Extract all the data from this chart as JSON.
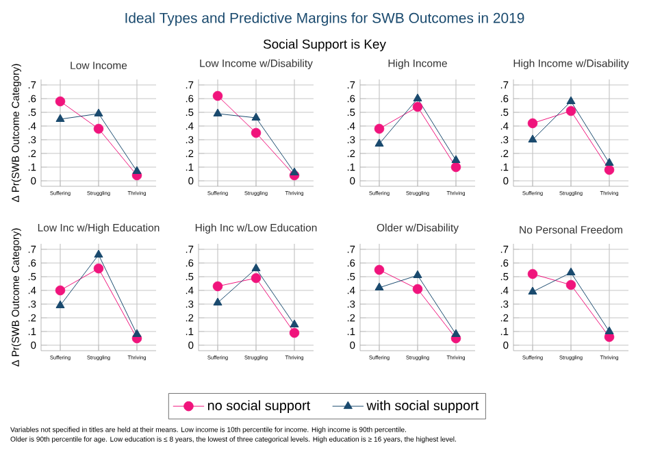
{
  "chart_data": [
    {
      "type": "line",
      "title": "Low Income",
      "ylabel": "Δ Pr(SWB Outcome Category)",
      "categories": [
        "Suffering",
        "Struggling",
        "Thriving"
      ],
      "ylim": [
        -0.04,
        0.74
      ],
      "yticks": [
        {
          "value": 0,
          "label": "0"
        },
        {
          "value": 0.1,
          "label": ".1"
        },
        {
          "value": 0.2,
          "label": ".2"
        },
        {
          "value": 0.3,
          "label": ".3"
        },
        {
          "value": 0.4,
          "label": ".4"
        },
        {
          "value": 0.5,
          "label": ".5"
        },
        {
          "value": 0.6,
          "label": ".6"
        },
        {
          "value": 0.7,
          "label": ".7"
        }
      ],
      "grid": true,
      "series": [
        {
          "color": "#f0147c",
          "marker": "circle",
          "values": [
            0.58,
            0.38,
            0.04
          ]
        },
        {
          "color": "#1a4a6e",
          "marker": "triangle",
          "values": [
            0.45,
            0.49,
            0.07
          ]
        }
      ]
    },
    {
      "type": "line",
      "title": "Low Income w/Disability",
      "categories": [
        "Suffering",
        "Struggling",
        "Thriving"
      ],
      "ylim": [
        -0.04,
        0.74
      ],
      "yticks": [
        {
          "value": 0,
          "label": "0"
        },
        {
          "value": 0.1,
          "label": ".1"
        },
        {
          "value": 0.2,
          "label": ".2"
        },
        {
          "value": 0.3,
          "label": ".3"
        },
        {
          "value": 0.4,
          "label": ".4"
        },
        {
          "value": 0.5,
          "label": ".5"
        },
        {
          "value": 0.6,
          "label": ".6"
        },
        {
          "value": 0.7,
          "label": ".7"
        }
      ],
      "grid": true,
      "series": [
        {
          "color": "#f0147c",
          "marker": "circle",
          "values": [
            0.62,
            0.35,
            0.04
          ]
        },
        {
          "color": "#1a4a6e",
          "marker": "triangle",
          "values": [
            0.49,
            0.46,
            0.06
          ]
        }
      ]
    },
    {
      "type": "line",
      "title": "High Income",
      "categories": [
        "Suffering",
        "Struggling",
        "Thriving"
      ],
      "ylim": [
        -0.04,
        0.74
      ],
      "yticks": [
        {
          "value": 0,
          "label": "0"
        },
        {
          "value": 0.1,
          "label": ".1"
        },
        {
          "value": 0.2,
          "label": ".2"
        },
        {
          "value": 0.3,
          "label": ".3"
        },
        {
          "value": 0.4,
          "label": ".4"
        },
        {
          "value": 0.5,
          "label": ".5"
        },
        {
          "value": 0.6,
          "label": ".6"
        },
        {
          "value": 0.7,
          "label": ".7"
        }
      ],
      "grid": true,
      "series": [
        {
          "color": "#f0147c",
          "marker": "circle",
          "values": [
            0.38,
            0.54,
            0.1
          ]
        },
        {
          "color": "#1a4a6e",
          "marker": "triangle",
          "values": [
            0.27,
            0.6,
            0.15
          ]
        }
      ]
    },
    {
      "type": "line",
      "title": "High Income w/Disability",
      "categories": [
        "Suffering",
        "Struggling",
        "Thriving"
      ],
      "ylim": [
        -0.04,
        0.74
      ],
      "yticks": [
        {
          "value": 0,
          "label": "0"
        },
        {
          "value": 0.1,
          "label": ".1"
        },
        {
          "value": 0.2,
          "label": ".2"
        },
        {
          "value": 0.3,
          "label": ".3"
        },
        {
          "value": 0.4,
          "label": ".4"
        },
        {
          "value": 0.5,
          "label": ".5"
        },
        {
          "value": 0.6,
          "label": ".6"
        },
        {
          "value": 0.7,
          "label": ".7"
        }
      ],
      "grid": true,
      "series": [
        {
          "color": "#f0147c",
          "marker": "circle",
          "values": [
            0.42,
            0.51,
            0.08
          ]
        },
        {
          "color": "#1a4a6e",
          "marker": "triangle",
          "values": [
            0.3,
            0.58,
            0.13
          ]
        }
      ]
    },
    {
      "type": "line",
      "title": "Low Inc w/High Education",
      "ylabel": "Δ Pr(SWB Outcome Category)",
      "categories": [
        "Suffering",
        "Struggling",
        "Thriving"
      ],
      "ylim": [
        -0.04,
        0.74
      ],
      "yticks": [
        {
          "value": 0,
          "label": "0"
        },
        {
          "value": 0.1,
          "label": ".1"
        },
        {
          "value": 0.2,
          "label": ".2"
        },
        {
          "value": 0.3,
          "label": ".3"
        },
        {
          "value": 0.4,
          "label": ".4"
        },
        {
          "value": 0.5,
          "label": ".5"
        },
        {
          "value": 0.6,
          "label": ".6"
        },
        {
          "value": 0.7,
          "label": ".7"
        }
      ],
      "grid": true,
      "series": [
        {
          "color": "#f0147c",
          "marker": "circle",
          "values": [
            0.4,
            0.56,
            0.05
          ]
        },
        {
          "color": "#1a4a6e",
          "marker": "triangle",
          "values": [
            0.29,
            0.66,
            0.08
          ]
        }
      ]
    },
    {
      "type": "line",
      "title": "High Inc w/Low Education",
      "categories": [
        "Suffering",
        "Struggling",
        "Thriving"
      ],
      "ylim": [
        -0.04,
        0.74
      ],
      "yticks": [
        {
          "value": 0,
          "label": "0"
        },
        {
          "value": 0.1,
          "label": ".1"
        },
        {
          "value": 0.2,
          "label": ".2"
        },
        {
          "value": 0.3,
          "label": ".3"
        },
        {
          "value": 0.4,
          "label": ".4"
        },
        {
          "value": 0.5,
          "label": ".5"
        },
        {
          "value": 0.6,
          "label": ".6"
        },
        {
          "value": 0.7,
          "label": ".7"
        }
      ],
      "grid": true,
      "series": [
        {
          "color": "#f0147c",
          "marker": "circle",
          "values": [
            0.43,
            0.49,
            0.09
          ]
        },
        {
          "color": "#1a4a6e",
          "marker": "triangle",
          "values": [
            0.31,
            0.56,
            0.15
          ]
        }
      ]
    },
    {
      "type": "line",
      "title": "Older w/Disability",
      "categories": [
        "Suffering",
        "Struggling",
        "Thriving"
      ],
      "ylim": [
        -0.04,
        0.74
      ],
      "yticks": [
        {
          "value": 0,
          "label": "0"
        },
        {
          "value": 0.1,
          "label": ".1"
        },
        {
          "value": 0.2,
          "label": ".2"
        },
        {
          "value": 0.3,
          "label": ".3"
        },
        {
          "value": 0.4,
          "label": ".4"
        },
        {
          "value": 0.5,
          "label": ".5"
        },
        {
          "value": 0.6,
          "label": ".6"
        },
        {
          "value": 0.7,
          "label": ".7"
        }
      ],
      "grid": true,
      "series": [
        {
          "color": "#f0147c",
          "marker": "circle",
          "values": [
            0.55,
            0.41,
            0.05
          ]
        },
        {
          "color": "#1a4a6e",
          "marker": "triangle",
          "values": [
            0.42,
            0.51,
            0.08
          ]
        }
      ]
    },
    {
      "type": "line",
      "title": "No Personal Freedom",
      "categories": [
        "Suffering",
        "Struggling",
        "Thriving"
      ],
      "ylim": [
        -0.04,
        0.74
      ],
      "yticks": [
        {
          "value": 0,
          "label": "0"
        },
        {
          "value": 0.1,
          "label": ".1"
        },
        {
          "value": 0.2,
          "label": ".2"
        },
        {
          "value": 0.3,
          "label": ".3"
        },
        {
          "value": 0.4,
          "label": ".4"
        },
        {
          "value": 0.5,
          "label": ".5"
        },
        {
          "value": 0.6,
          "label": ".6"
        },
        {
          "value": 0.7,
          "label": ".7"
        }
      ],
      "grid": true,
      "legend": "bottom",
      "series": [
        {
          "name": "no social support",
          "color": "#f0147c",
          "marker": "circle",
          "values": [
            0.52,
            0.44,
            0.06
          ]
        },
        {
          "name": "with social support",
          "color": "#1a4a6e",
          "marker": "triangle",
          "values": [
            0.39,
            0.53,
            0.1
          ]
        }
      ]
    },
    {
      "type": "other",
      "title": "Ideal Types and Predictive Margins for SWB Outcomes in 2019",
      "subtitle": "Social Support is Key",
      "annotations": [
        "Variables not specified in titles are held at their means. Low income is 10th percentile for income. High income is 90th percentile.",
        "Older is 90th percentile for age. Low education is ≤ 8 years, the lowest of three categorical levels. High education is ≥ 16 years, the highest level."
      ]
    }
  ]
}
